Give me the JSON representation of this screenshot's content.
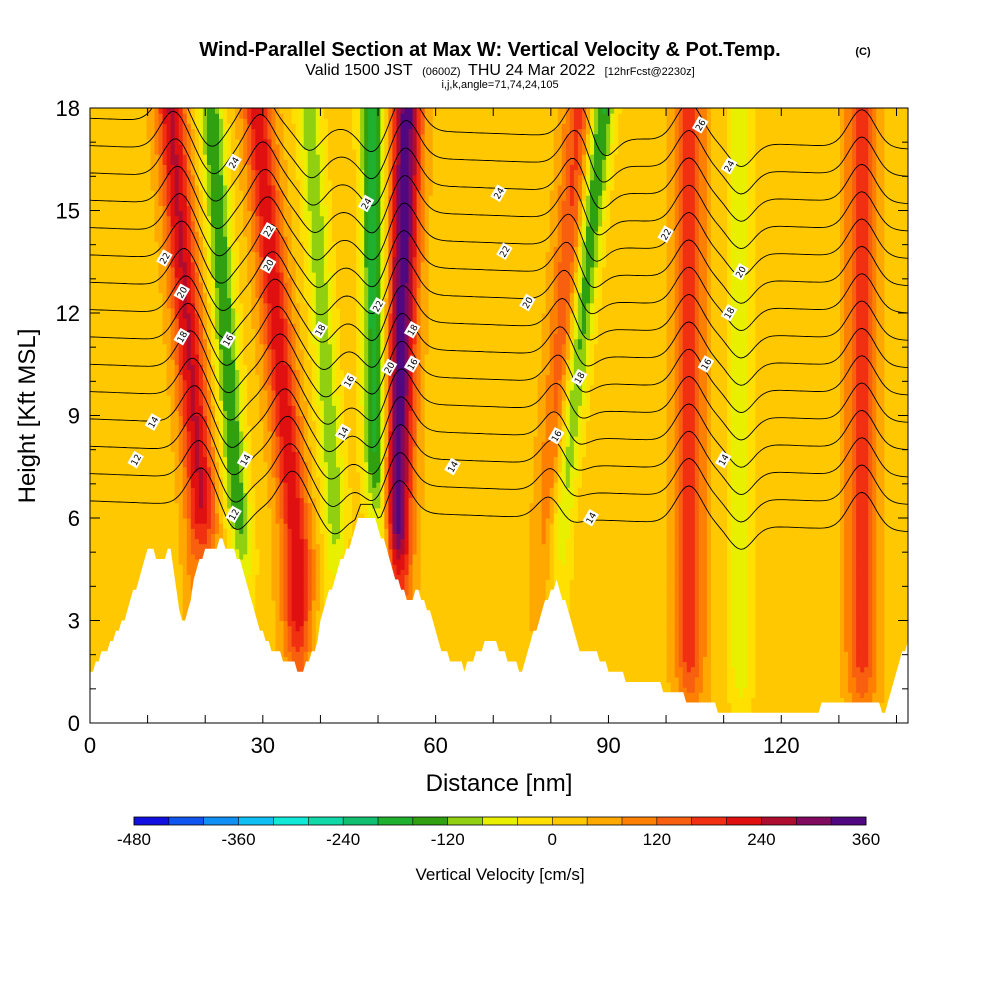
{
  "title": {
    "main": "Wind-Parallel Section at Max W: Vertical Velocity & Pot.Temp.",
    "copyright": "(C)",
    "valid_prefix": "Valid 1500 JST",
    "valid_utc": "(0600Z)",
    "valid_date": "THU 24 Mar 2022",
    "forecast": "[12hrFcst@2230z]",
    "indices": "i,j,k,angle=71,74,24,105"
  },
  "colors": {
    "background": "#ffffff",
    "terrain": "#ffffff",
    "contour": "#000000",
    "colorbar": [
      "#1010e0",
      "#1055f0",
      "#1090f5",
      "#10c0f5",
      "#10e8d8",
      "#10d8a8",
      "#10c070",
      "#20b030",
      "#30a010",
      "#90d010",
      "#e8f000",
      "#ffe000",
      "#ffc800",
      "#ffa800",
      "#ff8000",
      "#f86010",
      "#f03010",
      "#e01010",
      "#b00c30",
      "#800a60",
      "#500880"
    ]
  },
  "chart_data": {
    "type": "heatmap",
    "xlabel": "Distance [nm]",
    "ylabel": "Height [Kft MSL]",
    "xlim": [
      0,
      142
    ],
    "ylim": [
      0,
      18
    ],
    "xticks": [
      0,
      30,
      60,
      90,
      120
    ],
    "yticks": [
      0,
      3,
      6,
      9,
      12,
      15,
      18
    ],
    "colorbar": {
      "title": "Vertical Velocity [cm/s]",
      "range": [
        -480,
        360
      ],
      "ticks": [
        -480,
        -360,
        -240,
        -120,
        0,
        120,
        240,
        360
      ]
    },
    "terrain_profile": {
      "x": [
        0,
        3,
        6,
        8,
        10,
        12,
        14,
        15,
        16,
        17,
        19,
        21,
        23,
        25,
        27,
        29,
        31,
        33,
        35,
        37,
        39,
        41,
        43,
        45,
        47,
        49,
        51,
        53,
        55,
        57,
        59,
        61,
        63,
        65,
        67,
        69,
        71,
        73,
        75,
        77,
        79,
        81,
        83,
        85,
        87,
        90,
        93,
        96,
        100,
        105,
        110,
        115,
        120,
        125,
        130,
        135,
        138,
        142
      ],
      "height_kft": [
        1.5,
        2.2,
        3.0,
        4.0,
        5.2,
        4.8,
        5.0,
        3.8,
        2.9,
        3.3,
        4.8,
        5.1,
        5.3,
        5.0,
        4.3,
        3.0,
        2.3,
        2.0,
        1.7,
        1.5,
        2.2,
        3.5,
        4.5,
        5.2,
        6.1,
        6.1,
        5.3,
        4.2,
        3.6,
        3.8,
        3.2,
        2.1,
        1.8,
        1.6,
        2.0,
        2.4,
        2.2,
        1.7,
        1.6,
        2.6,
        3.5,
        4.2,
        3.2,
        2.0,
        2.2,
        1.6,
        1.3,
        1.2,
        1.0,
        0.6,
        0.4,
        0.3,
        0.3,
        0.3,
        0.7,
        0.6,
        0.4,
        2.5
      ]
    },
    "updraft_bands_cm_s": [
      {
        "x_at_18kft": 14,
        "x_at_5kft": 20,
        "peak": 220
      },
      {
        "x_at_18kft": 29,
        "x_at_5kft": 36,
        "peak": 200
      },
      {
        "x_at_18kft": 55,
        "x_at_5kft": 53,
        "peak": 320
      },
      {
        "x_at_18kft": 85,
        "x_at_5kft": 80,
        "peak": 150
      },
      {
        "x_at_18kft": 104,
        "x_at_5kft": 104,
        "peak": 170
      },
      {
        "x_at_18kft": 134,
        "x_at_5kft": 134,
        "peak": 170
      }
    ],
    "downdraft_bands_cm_s": [
      {
        "x_at_18kft": 21,
        "x_at_5kft": 26,
        "peak": -180
      },
      {
        "x_at_18kft": 38,
        "x_at_5kft": 43,
        "peak": -130
      },
      {
        "x_at_18kft": 49,
        "x_at_5kft": 50,
        "peak": -220
      },
      {
        "x_at_18kft": 89,
        "x_at_5kft": 81,
        "peak": -200
      },
      {
        "x_at_18kft": 113,
        "x_at_5kft": 113,
        "peak": -100
      }
    ],
    "theta_contours": {
      "levels": [
        12,
        13,
        14,
        15,
        16,
        17,
        18,
        19,
        20,
        21,
        22,
        23,
        24,
        25,
        26
      ],
      "labels": [
        {
          "text": "12",
          "x": 8,
          "y": 7.7
        },
        {
          "text": "12",
          "x": 25,
          "y": 6.1
        },
        {
          "text": "14",
          "x": 11,
          "y": 8.8
        },
        {
          "text": "14",
          "x": 27,
          "y": 7.7
        },
        {
          "text": "14",
          "x": 44,
          "y": 8.5
        },
        {
          "text": "14",
          "x": 63,
          "y": 7.5
        },
        {
          "text": "14",
          "x": 87,
          "y": 6.0
        },
        {
          "text": "14",
          "x": 110,
          "y": 7.7
        },
        {
          "text": "16",
          "x": 24,
          "y": 11.2
        },
        {
          "text": "16",
          "x": 45,
          "y": 10.0
        },
        {
          "text": "16",
          "x": 81,
          "y": 8.4
        },
        {
          "text": "16",
          "x": 56,
          "y": 10.5
        },
        {
          "text": "16",
          "x": 107,
          "y": 10.5
        },
        {
          "text": "18",
          "x": 16,
          "y": 11.3
        },
        {
          "text": "18",
          "x": 40,
          "y": 11.5
        },
        {
          "text": "18",
          "x": 56,
          "y": 11.5
        },
        {
          "text": "18",
          "x": 85,
          "y": 10.1
        },
        {
          "text": "18",
          "x": 111,
          "y": 12.0
        },
        {
          "text": "20",
          "x": 16,
          "y": 12.6
        },
        {
          "text": "20",
          "x": 31,
          "y": 13.4
        },
        {
          "text": "20",
          "x": 52,
          "y": 10.4
        },
        {
          "text": "20",
          "x": 76,
          "y": 12.3
        },
        {
          "text": "20",
          "x": 113,
          "y": 13.2
        },
        {
          "text": "22",
          "x": 13,
          "y": 13.6
        },
        {
          "text": "22",
          "x": 31,
          "y": 14.4
        },
        {
          "text": "22",
          "x": 50,
          "y": 12.2
        },
        {
          "text": "22",
          "x": 72,
          "y": 13.8
        },
        {
          "text": "22",
          "x": 100,
          "y": 14.3
        },
        {
          "text": "24",
          "x": 25,
          "y": 16.4
        },
        {
          "text": "24",
          "x": 48,
          "y": 15.2
        },
        {
          "text": "24",
          "x": 71,
          "y": 15.5
        },
        {
          "text": "24",
          "x": 111,
          "y": 16.3
        },
        {
          "text": "26",
          "x": 106,
          "y": 17.5
        }
      ]
    }
  }
}
